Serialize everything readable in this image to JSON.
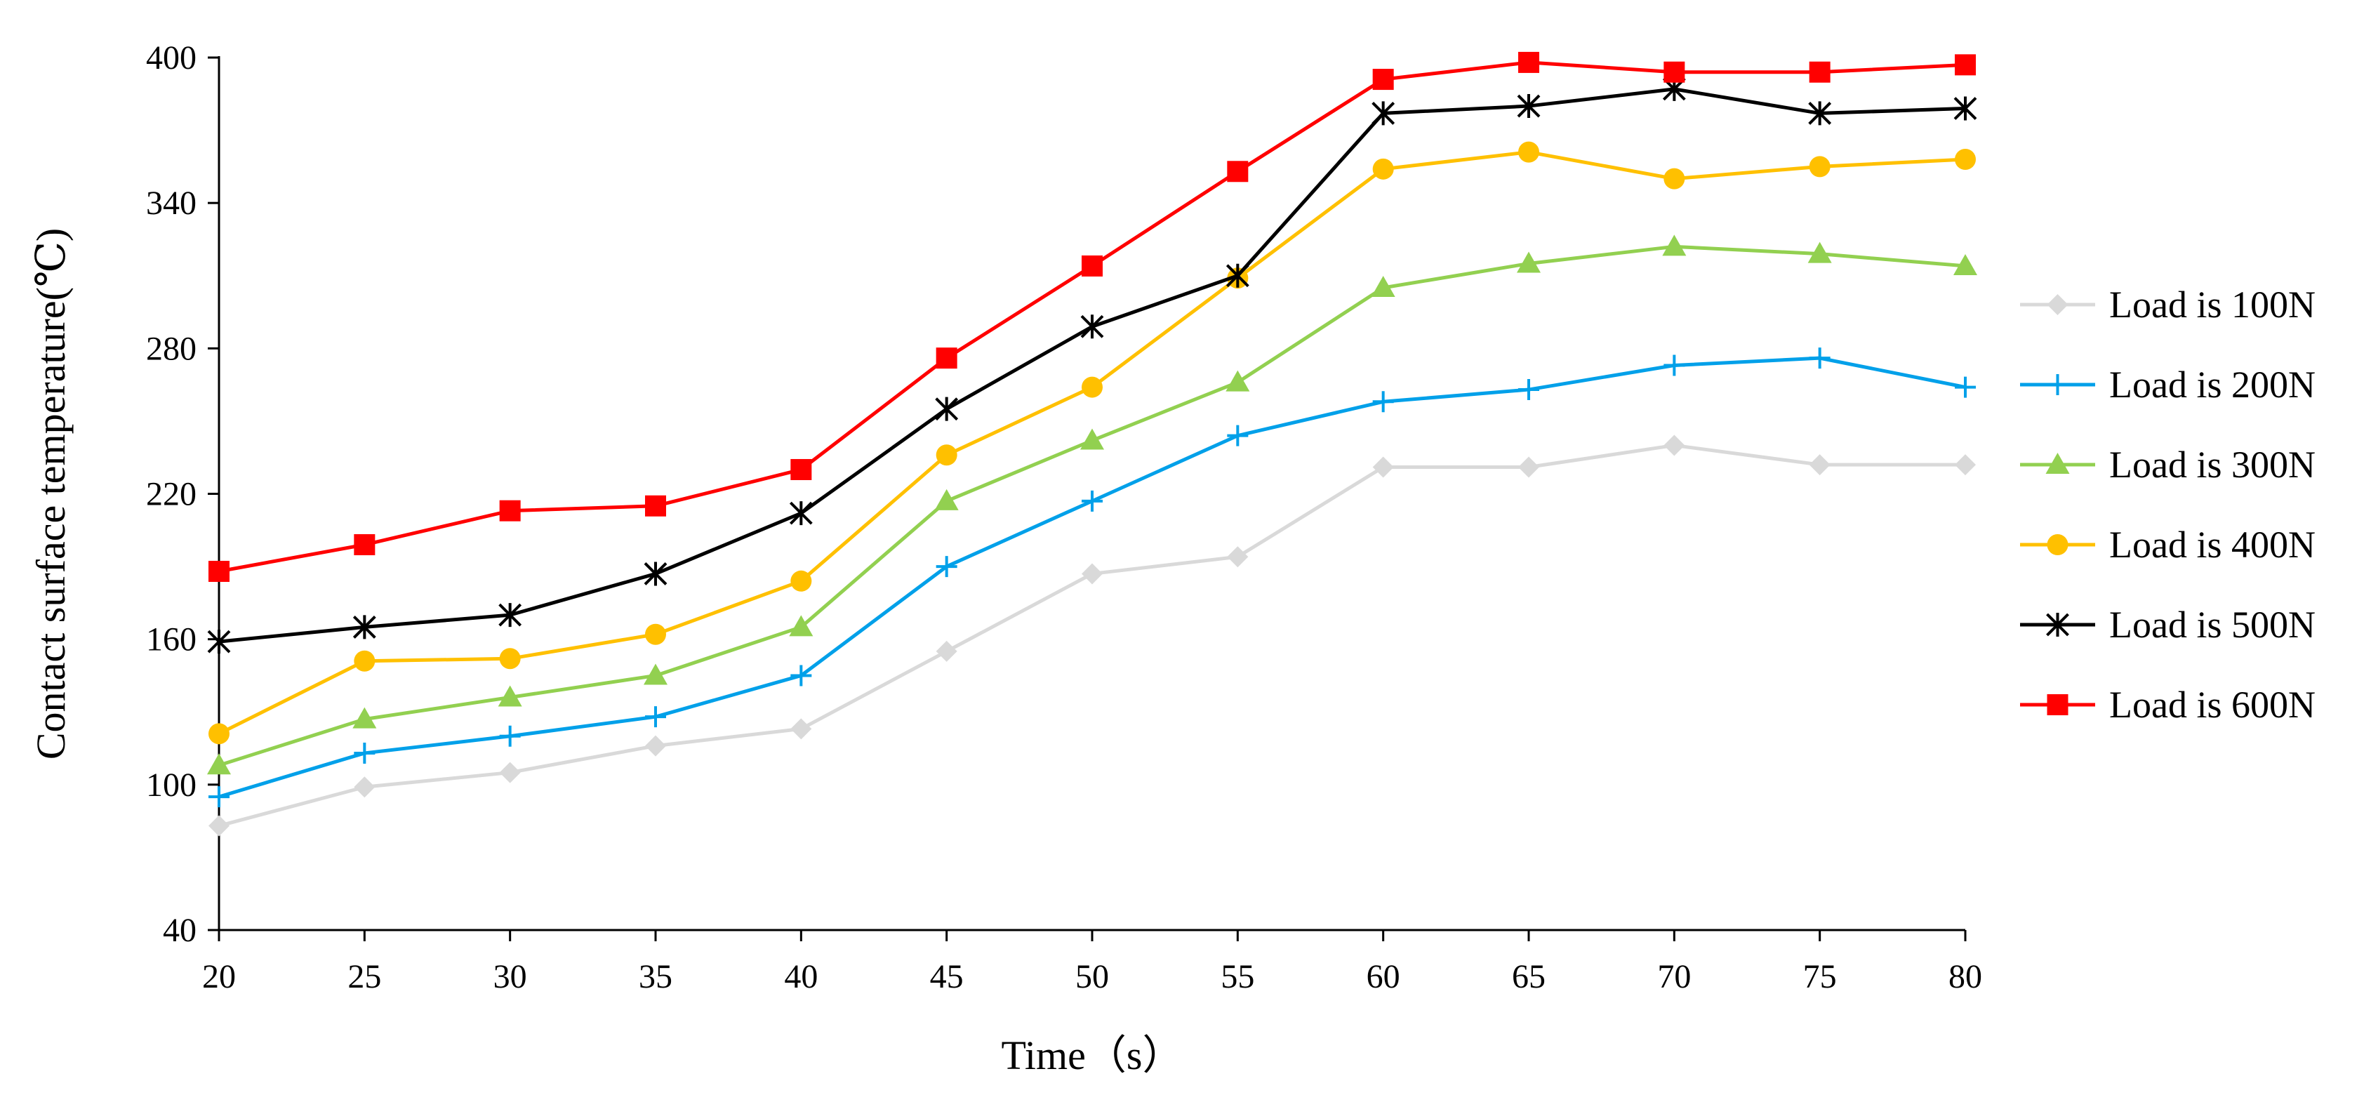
{
  "chart_data": {
    "type": "line",
    "title": "",
    "xlabel": "Time（s）",
    "ylabel": "Contact surface temperature(℃)",
    "x": [
      20,
      25,
      30,
      35,
      40,
      45,
      50,
      55,
      60,
      65,
      70,
      75,
      80
    ],
    "x_ticks": [
      "20",
      "25",
      "30",
      "35",
      "40",
      "45",
      "50",
      "55",
      "60",
      "65",
      "70",
      "75",
      "80"
    ],
    "ylim": [
      40,
      400
    ],
    "y_ticks": [
      "40",
      "100",
      "160",
      "220",
      "280",
      "340",
      "400"
    ],
    "grid": false,
    "legend_position": "right",
    "series": [
      {
        "name": "Load is 100N",
        "color": "#d9d9d9",
        "marker": "diamond",
        "values": [
          83,
          99,
          105,
          116,
          123,
          155,
          187,
          194,
          231,
          231,
          240,
          232,
          232
        ]
      },
      {
        "name": "Load is 200N",
        "color": "#00a0e9",
        "marker": "plus",
        "values": [
          95,
          113,
          120,
          128,
          145,
          190,
          217,
          244,
          258,
          263,
          273,
          276,
          264
        ]
      },
      {
        "name": "Load is 300N",
        "color": "#92d050",
        "marker": "triangle",
        "values": [
          108,
          127,
          136,
          145,
          165,
          217,
          242,
          266,
          305,
          315,
          322,
          319,
          314
        ]
      },
      {
        "name": "Load is 400N",
        "color": "#ffc000",
        "marker": "circle",
        "values": [
          121,
          151,
          152,
          162,
          184,
          236,
          264,
          309,
          354,
          361,
          350,
          355,
          358
        ]
      },
      {
        "name": "Load is 500N",
        "color": "#000000",
        "marker": "asterisk",
        "values": [
          159,
          165,
          170,
          187,
          212,
          255,
          289,
          310,
          377,
          380,
          387,
          377,
          379
        ]
      },
      {
        "name": "Load is 600N",
        "color": "#ff0000",
        "marker": "square",
        "values": [
          188,
          199,
          213,
          215,
          230,
          276,
          314,
          353,
          391,
          398,
          394,
          394,
          397
        ]
      }
    ]
  }
}
